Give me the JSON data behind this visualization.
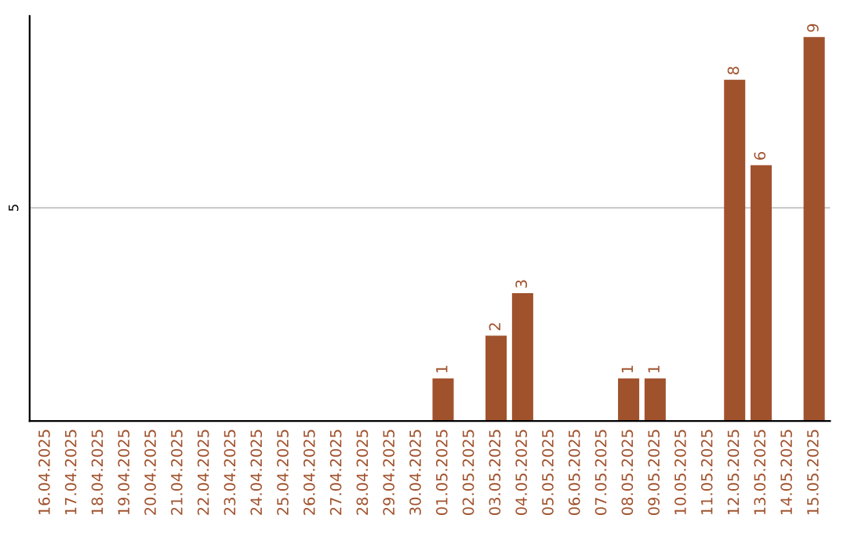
{
  "chart_data": {
    "type": "bar",
    "categories": [
      "16.04.2025",
      "17.04.2025",
      "18.04.2025",
      "19.04.2025",
      "20.04.2025",
      "21.04.2025",
      "22.04.2025",
      "23.04.2025",
      "24.04.2025",
      "25.04.2025",
      "26.04.2025",
      "27.04.2025",
      "28.04.2025",
      "29.04.2025",
      "30.04.2025",
      "01.05.2025",
      "02.05.2025",
      "03.05.2025",
      "04.05.2025",
      "05.05.2025",
      "06.05.2025",
      "07.05.2025",
      "08.05.2025",
      "09.05.2025",
      "10.05.2025",
      "11.05.2025",
      "12.05.2025",
      "13.05.2025",
      "14.05.2025",
      "15.05.2025"
    ],
    "values": [
      null,
      null,
      null,
      null,
      null,
      null,
      null,
      null,
      null,
      null,
      null,
      null,
      null,
      null,
      null,
      1,
      null,
      2,
      3,
      null,
      null,
      null,
      1,
      1,
      null,
      null,
      8,
      6,
      null,
      9
    ],
    "data_labels": true,
    "color": "#a0522d",
    "ref_lines": [
      {
        "axis": "y",
        "value": 5,
        "label": "5",
        "color": "#cccccc"
      }
    ]
  }
}
